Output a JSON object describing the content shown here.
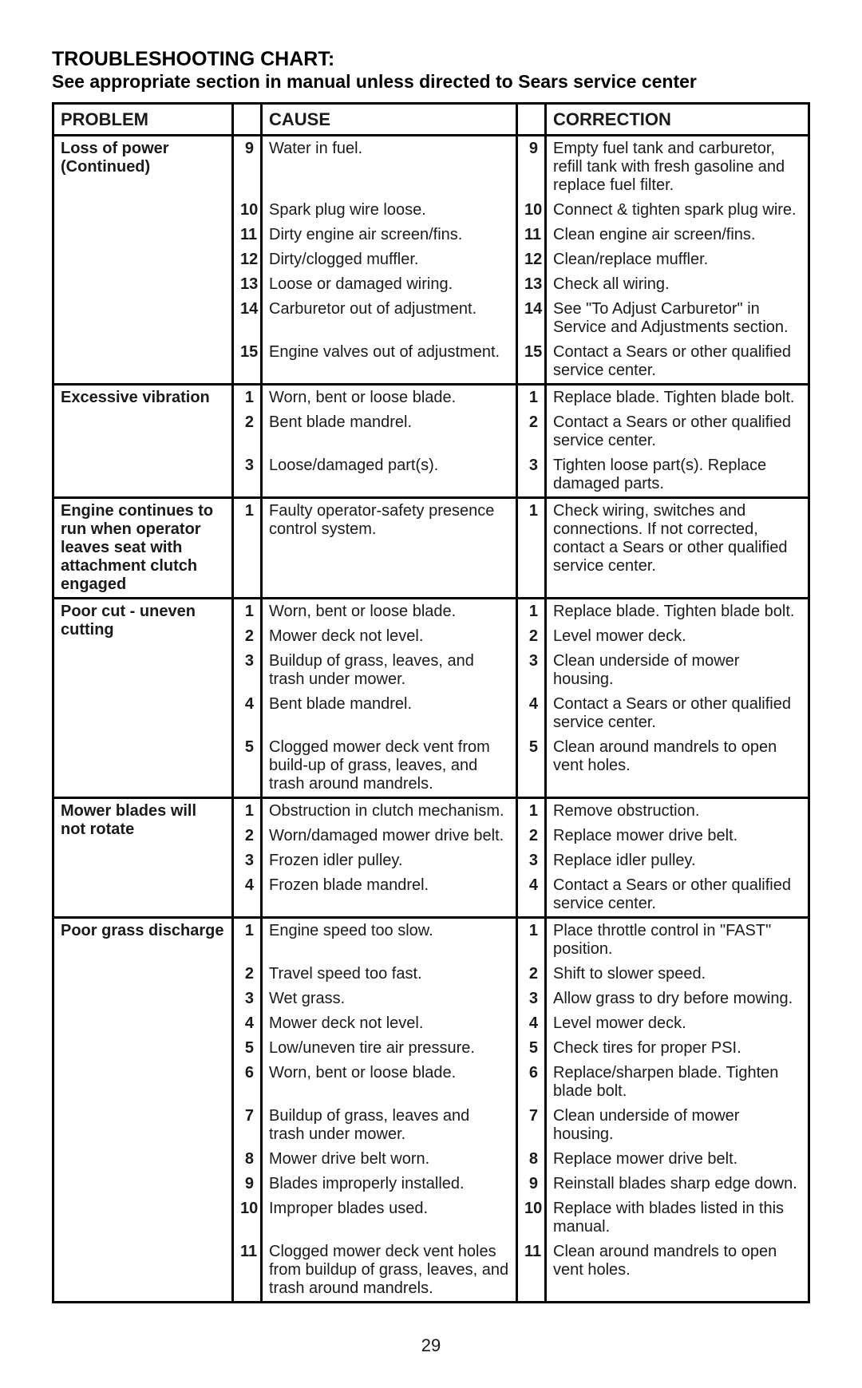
{
  "page": {
    "title_main": "TROUBLESHOOTING CHART:",
    "title_sub": "See appropriate section in manual unless directed to Sears service center",
    "page_number": "29"
  },
  "headers": {
    "problem": "PROBLEM",
    "cause": "CAUSE",
    "correction": "CORRECTION"
  },
  "colors": {
    "text": "#1a1a1a",
    "border": "#000000",
    "background": "#ffffff"
  },
  "groups": [
    {
      "problem": "Loss of power (Continued)",
      "rows": [
        {
          "n": "9",
          "cause": "Water in fuel.",
          "n2": "9",
          "corr": "Empty fuel tank and carburetor, refill tank with fresh gasoline and replace fuel filter."
        },
        {
          "n": "10",
          "cause": "Spark plug wire loose.",
          "n2": "10",
          "corr": "Connect & tighten spark plug wire."
        },
        {
          "n": "11",
          "cause": "Dirty engine air screen/fins.",
          "n2": "11",
          "corr": "Clean engine air screen/fins."
        },
        {
          "n": "12",
          "cause": "Dirty/clogged muffler.",
          "n2": "12",
          "corr": "Clean/replace muffler."
        },
        {
          "n": "13",
          "cause": "Loose or damaged wiring.",
          "n2": "13",
          "corr": "Check all wiring."
        },
        {
          "n": "14",
          "cause": "Carburetor out of adjustment.",
          "n2": "14",
          "corr": "See \"To Adjust Carburetor\" in Service and Adjustments section."
        },
        {
          "n": "15",
          "cause": "Engine valves out of adjustment.",
          "n2": "15",
          "corr": "Contact a Sears or other qualified service center."
        }
      ]
    },
    {
      "problem": "Excessive vibration",
      "rows": [
        {
          "n": "1",
          "cause": "Worn, bent or loose blade.",
          "n2": "1",
          "corr": "Replace blade. Tighten blade bolt."
        },
        {
          "n": "2",
          "cause": "Bent blade mandrel.",
          "n2": "2",
          "corr": "Contact a Sears or other qualified service center."
        },
        {
          "n": "3",
          "cause": "Loose/damaged part(s).",
          "n2": "3",
          "corr": "Tighten loose part(s). Replace damaged parts."
        }
      ]
    },
    {
      "problem": "Engine continues to run when operator leaves seat with attachment clutch engaged",
      "rows": [
        {
          "n": "1",
          "cause": "Faulty operator-safety presence control system.",
          "n2": "1",
          "corr": "Check wiring, switches and connections. If not corrected, contact a Sears or other qualified service center."
        }
      ]
    },
    {
      "problem": "Poor cut - uneven cutting",
      "rows": [
        {
          "n": "1",
          "cause": "Worn, bent or loose blade.",
          "n2": "1",
          "corr": "Replace blade. Tighten blade bolt."
        },
        {
          "n": "2",
          "cause": "Mower deck not level.",
          "n2": "2",
          "corr": "Level mower deck."
        },
        {
          "n": "3",
          "cause": "Buildup of grass, leaves, and trash under mower.",
          "n2": "3",
          "corr": "Clean underside of mower housing."
        },
        {
          "n": "4",
          "cause": "Bent blade mandrel.",
          "n2": "4",
          "corr": "Contact a Sears or other qualified service center."
        },
        {
          "n": "5",
          "cause": "Clogged mower deck vent from build-up of grass, leaves, and trash around mandrels.",
          "n2": "5",
          "corr": "Clean around mandrels to open vent holes."
        }
      ]
    },
    {
      "problem": "Mower blades will not rotate",
      "rows": [
        {
          "n": "1",
          "cause": "Obstruction in clutch mechanism.",
          "n2": "1",
          "corr": "Remove obstruction."
        },
        {
          "n": "2",
          "cause": "Worn/damaged mower drive belt.",
          "n2": "2",
          "corr": "Replace mower drive belt."
        },
        {
          "n": "3",
          "cause": "Frozen idler pulley.",
          "n2": "3",
          "corr": "Replace idler pulley."
        },
        {
          "n": "4",
          "cause": "Frozen blade mandrel.",
          "n2": "4",
          "corr": "Contact a Sears or other qualified service center."
        }
      ]
    },
    {
      "problem": "Poor grass discharge",
      "rows": [
        {
          "n": "1",
          "cause": "Engine speed too slow.",
          "n2": "1",
          "corr": "Place throttle control in \"FAST\" position."
        },
        {
          "n": "2",
          "cause": "Travel speed too fast.",
          "n2": "2",
          "corr": "Shift to slower speed."
        },
        {
          "n": "3",
          "cause": "Wet grass.",
          "n2": "3",
          "corr": "Allow grass to dry before mowing."
        },
        {
          "n": "4",
          "cause": "Mower deck not level.",
          "n2": "4",
          "corr": "Level mower deck."
        },
        {
          "n": "5",
          "cause": "Low/uneven tire air pressure.",
          "n2": "5",
          "corr": "Check tires for proper PSI."
        },
        {
          "n": "6",
          "cause": "Worn, bent or loose blade.",
          "n2": "6",
          "corr": "Replace/sharpen blade. Tighten blade bolt."
        },
        {
          "n": "7",
          "cause": "Buildup of grass, leaves and trash under mower.",
          "n2": "7",
          "corr": "Clean underside of mower housing."
        },
        {
          "n": "8",
          "cause": "Mower drive belt worn.",
          "n2": "8",
          "corr": "Replace mower drive belt."
        },
        {
          "n": "9",
          "cause": "Blades improperly installed.",
          "n2": "9",
          "corr": "Reinstall blades sharp edge down."
        },
        {
          "n": "10",
          "cause": "Improper blades used.",
          "n2": "10",
          "corr": "Replace with blades listed in this manual."
        },
        {
          "n": "11",
          "cause": "Clogged mower deck vent holes from buildup of grass, leaves, and trash around mandrels.",
          "n2": "11",
          "corr": "Clean around mandrels to open vent holes."
        }
      ]
    }
  ]
}
